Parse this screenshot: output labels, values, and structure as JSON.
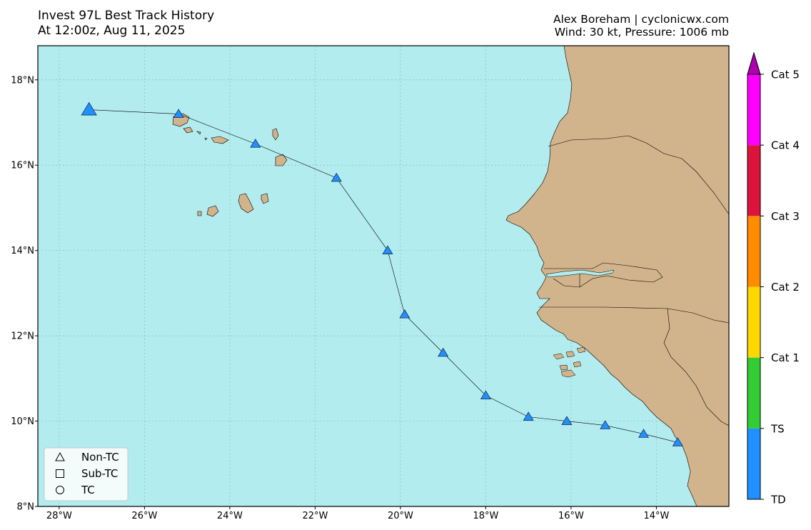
{
  "header": {
    "title": "Invest 97L Best Track History",
    "subtitle": "At 12:00z, Aug 11, 2025",
    "credit": "Alex Boreham | cyclonicwx.com",
    "status": "Wind: 30 kt, Pressure: 1006 mb"
  },
  "map": {
    "lon_range": [
      -28.5,
      -12.3
    ],
    "lat_range": [
      8.0,
      18.8
    ],
    "x_ticks": [
      {
        "value": -28,
        "label": "28°W"
      },
      {
        "value": -26,
        "label": "26°W"
      },
      {
        "value": -24,
        "label": "24°W"
      },
      {
        "value": -22,
        "label": "22°W"
      },
      {
        "value": -20,
        "label": "20°W"
      },
      {
        "value": -18,
        "label": "18°W"
      },
      {
        "value": -16,
        "label": "16°W"
      },
      {
        "value": -14,
        "label": "14°W"
      }
    ],
    "y_ticks": [
      {
        "value": 8,
        "label": "8°N"
      },
      {
        "value": 10,
        "label": "10°N"
      },
      {
        "value": 12,
        "label": "12°N"
      },
      {
        "value": 14,
        "label": "14°N"
      },
      {
        "value": 16,
        "label": "16°N"
      },
      {
        "value": 18,
        "label": "18°N"
      }
    ],
    "grid": true,
    "colors": {
      "ocean": "#b2ecee",
      "land": "#d2b48c",
      "track_marker": "#1e90ff"
    }
  },
  "track": [
    {
      "lon": -13.5,
      "lat": 9.5,
      "cat": "TD",
      "type": "Non-TC"
    },
    {
      "lon": -14.3,
      "lat": 9.7,
      "cat": "TD",
      "type": "Non-TC"
    },
    {
      "lon": -15.2,
      "lat": 9.9,
      "cat": "TD",
      "type": "Non-TC"
    },
    {
      "lon": -16.1,
      "lat": 10.0,
      "cat": "TD",
      "type": "Non-TC"
    },
    {
      "lon": -17.0,
      "lat": 10.1,
      "cat": "TD",
      "type": "Non-TC"
    },
    {
      "lon": -18.0,
      "lat": 10.6,
      "cat": "TD",
      "type": "Non-TC"
    },
    {
      "lon": -19.0,
      "lat": 11.6,
      "cat": "TD",
      "type": "Non-TC"
    },
    {
      "lon": -19.9,
      "lat": 12.5,
      "cat": "TD",
      "type": "Non-TC"
    },
    {
      "lon": -20.3,
      "lat": 14.0,
      "cat": "TD",
      "type": "Non-TC"
    },
    {
      "lon": -21.5,
      "lat": 15.7,
      "cat": "TD",
      "type": "Non-TC"
    },
    {
      "lon": -23.4,
      "lat": 16.5,
      "cat": "TD",
      "type": "Non-TC"
    },
    {
      "lon": -25.2,
      "lat": 17.2,
      "cat": "TD",
      "type": "Non-TC"
    },
    {
      "lon": -27.3,
      "lat": 17.3,
      "cat": "TD",
      "type": "Non-TC",
      "current": true
    }
  ],
  "legend": {
    "items": [
      {
        "symbol": "triangle-icon",
        "label": "Non-TC"
      },
      {
        "symbol": "square-icon",
        "label": "Sub-TC"
      },
      {
        "symbol": "circle-icon",
        "label": "TC"
      }
    ]
  },
  "colorbar": {
    "bands": [
      {
        "label": "TD",
        "color": "#1e90ff"
      },
      {
        "label": "TS",
        "color": "#32cd32"
      },
      {
        "label": "Cat 1",
        "color": "#ffd700"
      },
      {
        "label": "Cat 2",
        "color": "#ff8c00"
      },
      {
        "label": "Cat 3",
        "color": "#dc143c"
      },
      {
        "label": "Cat 4",
        "color": "#ff00ff"
      }
    ],
    "extend_color": "#b000b0",
    "top_label": "Cat 5"
  }
}
